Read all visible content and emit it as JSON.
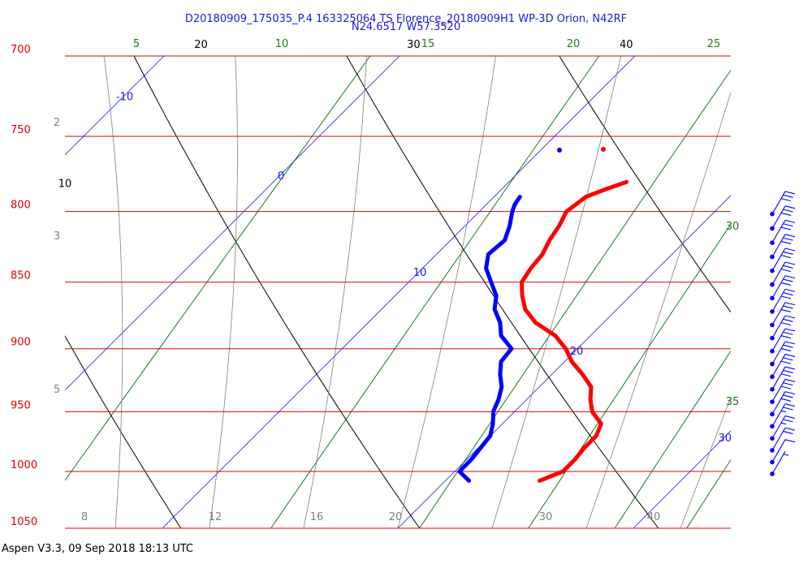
{
  "header": {
    "title_line1": "D20180909_175035_P.4 163325064 TS Florence_20180909H1 WP-3D Orion, N42RF",
    "title_line2": "N24.6517 W57.3520"
  },
  "footer": {
    "text": "Aspen V3.3, 09 Sep 2018  18:13 UTC"
  },
  "chart_data": {
    "type": "skew-t",
    "colors": {
      "isobar": "#e00000",
      "isotherm": "#1a1adb",
      "dry_adiabat": "#000000",
      "moist_adiabat": "#808080",
      "mixing_ratio": "#1a7a1a",
      "temperature": "#ff0000",
      "dewpoint": "#0000ff",
      "wind": "#0000ff"
    },
    "pressure_levels": [
      700,
      750,
      800,
      850,
      900,
      950,
      1000,
      1050
    ],
    "pressure_labels": [
      "700",
      "750",
      "800",
      "850",
      "900",
      "950",
      "1000",
      "1050"
    ],
    "isotherm_labels": [
      "-10",
      "0",
      "10",
      "20",
      "30"
    ],
    "dry_adiabat_labels": [
      "10",
      "20",
      "30",
      "40"
    ],
    "mixing_ratio_labels": [
      "5",
      "10",
      "15",
      "20",
      "25",
      "30",
      "35"
    ],
    "moist_adiabat_labels": [
      "2",
      "3",
      "5"
    ],
    "bottom_axis_labels": [
      "8",
      "12",
      "16",
      "20",
      "30",
      "40"
    ],
    "temperature_profile": {
      "name": "Temperature",
      "pressure": [
        1008,
        1000,
        990,
        980,
        970,
        960,
        950,
        940,
        930,
        920,
        910,
        900,
        890,
        880,
        870,
        860,
        850,
        840,
        830,
        820,
        810,
        800,
        795,
        790,
        785,
        780
      ],
      "temp": [
        24.0,
        24.6,
        24.6,
        24.5,
        24.5,
        24.2,
        23.3,
        22.7,
        22.2,
        21.3,
        20.3,
        19.5,
        18.5,
        17.1,
        16.1,
        15.4,
        14.8,
        14.6,
        14.5,
        14.2,
        14.0,
        13.7,
        13.8,
        13.9,
        14.4,
        15.0
      ]
    },
    "dewpoint_profile": {
      "name": "Dewpoint",
      "pressure": [
        1008,
        1000,
        990,
        980,
        970,
        960,
        950,
        940,
        930,
        920,
        910,
        900,
        890,
        880,
        870,
        860,
        850,
        840,
        830,
        820,
        810,
        800,
        795,
        790
      ],
      "dewpt": [
        21.0,
        20.2,
        20.2,
        20.1,
        20.0,
        19.6,
        19.1,
        18.8,
        18.4,
        17.8,
        17.3,
        17.2,
        16.2,
        15.6,
        14.8,
        14.3,
        13.5,
        12.7,
        12.2,
        12.3,
        11.9,
        11.4,
        11.2,
        11.1
      ]
    },
    "wind_barbs": {
      "pressure": [
        1000,
        990,
        980,
        970,
        960,
        950,
        940,
        930,
        920,
        910,
        900,
        890,
        880,
        870,
        860,
        850,
        840,
        830,
        820,
        810,
        800
      ],
      "speed_kt": [
        5,
        10,
        20,
        25,
        25,
        30,
        30,
        30,
        30,
        30,
        30,
        30,
        30,
        30,
        30,
        30,
        30,
        30,
        30,
        30,
        30
      ]
    }
  }
}
